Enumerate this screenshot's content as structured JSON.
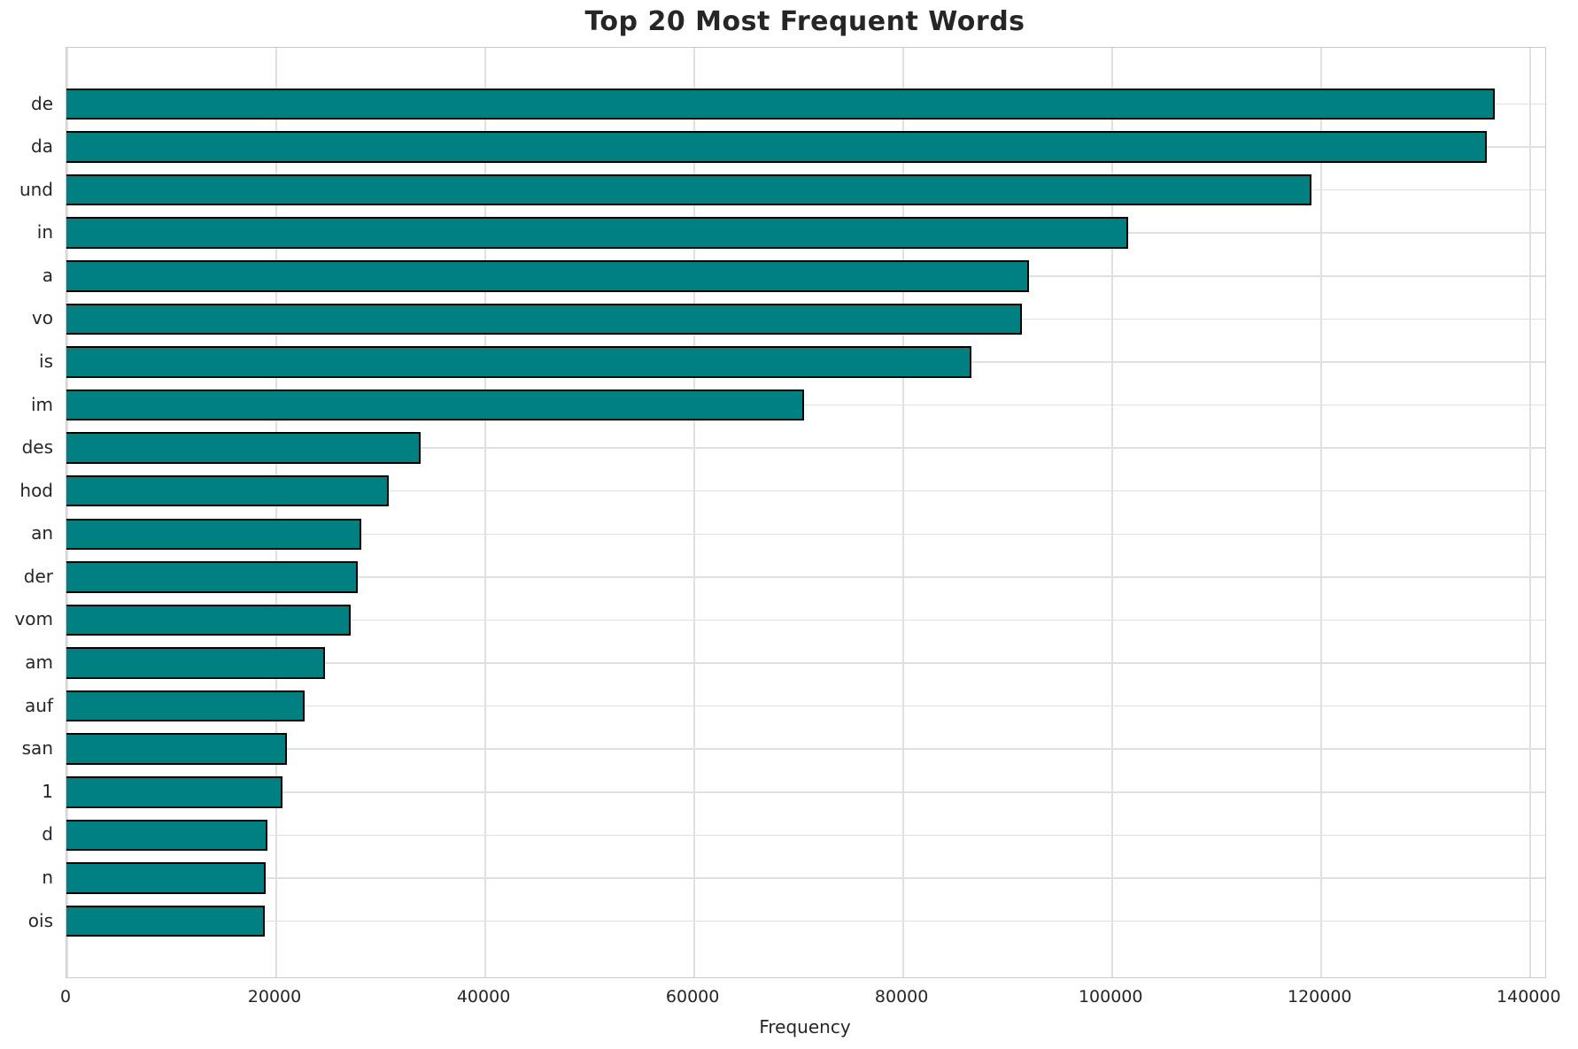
{
  "title": "Top 20 Most Frequent Words",
  "chart_data": {
    "type": "bar",
    "orientation": "horizontal",
    "title": "Top 20 Most Frequent Words",
    "xlabel": "Frequency",
    "ylabel": "",
    "categories": [
      "de",
      "da",
      "und",
      "in",
      "a",
      "vo",
      "is",
      "im",
      "des",
      "hod",
      "an",
      "der",
      "vom",
      "am",
      "auf",
      "san",
      "1",
      "d",
      "n",
      "ois"
    ],
    "values": [
      136700,
      135900,
      119100,
      101600,
      92100,
      91400,
      86600,
      70600,
      33900,
      30800,
      28200,
      27900,
      27200,
      24700,
      22800,
      21100,
      20700,
      19200,
      19100,
      19000
    ],
    "xlim": [
      0,
      141500
    ],
    "x_ticks": [
      0,
      20000,
      40000,
      60000,
      80000,
      100000,
      120000,
      140000
    ],
    "x_tick_labels": [
      "0",
      "20000",
      "40000",
      "60000",
      "80000",
      "100000",
      "120000",
      "140000"
    ],
    "grid": true,
    "legend": false,
    "colors": {
      "bar_fill": "#008080",
      "bar_edge": "#000000",
      "grid": "#e0e0e0",
      "spine": "#cccccc",
      "text": "#262626"
    }
  }
}
